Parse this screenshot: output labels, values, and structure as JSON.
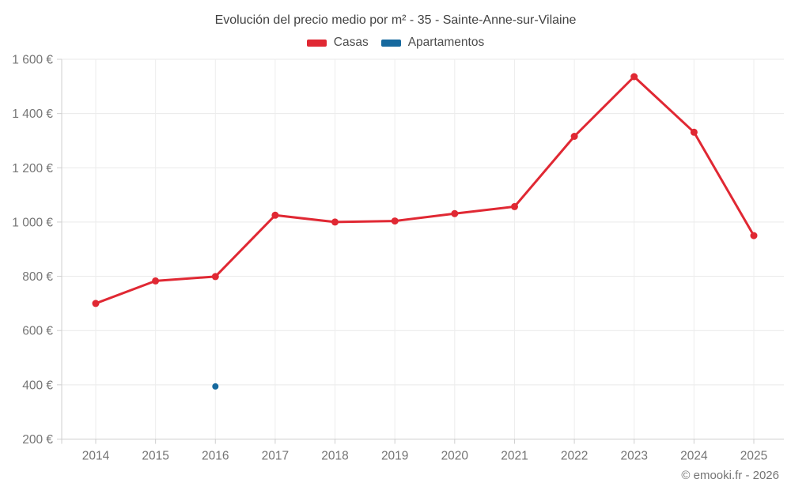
{
  "chart_data": {
    "type": "line",
    "title": "Evolución del precio medio por m² - 35 - Sainte-Anne-sur-Vilaine",
    "categories": [
      "2014",
      "2015",
      "2016",
      "2017",
      "2018",
      "2019",
      "2020",
      "2021",
      "2022",
      "2023",
      "2024",
      "2025"
    ],
    "series": [
      {
        "name": "Casas",
        "color": "#e02833",
        "values": [
          700,
          783,
          799,
          1025,
          1000,
          1004,
          1031,
          1057,
          1316,
          1536,
          1331,
          950
        ]
      },
      {
        "name": "Apartamentos",
        "color": "#16699e",
        "values": [
          null,
          null,
          394,
          null,
          null,
          null,
          null,
          null,
          null,
          null,
          null,
          null
        ]
      }
    ],
    "ylabel": "",
    "xlabel": "",
    "ylim": [
      200,
      1600
    ],
    "y_tick_values": [
      200,
      400,
      600,
      800,
      1000,
      1200,
      1400,
      1600
    ],
    "y_tick_labels": [
      "200 €",
      "400 €",
      "600 €",
      "800 €",
      "1 000 €",
      "1 200 €",
      "1 400 €",
      "1 600 €"
    ],
    "grid": "on",
    "legend_position": "top-center"
  },
  "footer": {
    "copyright": "© emooki.fr - 2026"
  }
}
